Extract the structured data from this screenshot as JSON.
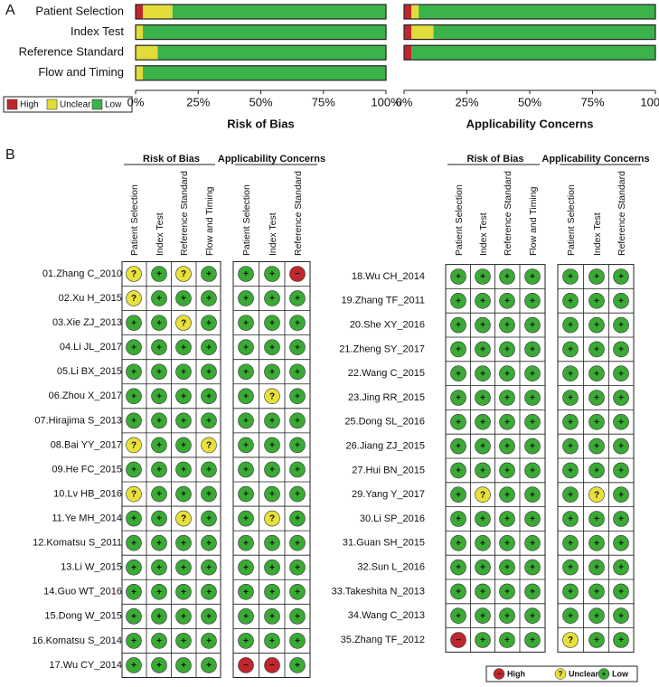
{
  "panel_labels": [
    "A",
    "B"
  ],
  "chart_data": [
    {
      "type": "bar",
      "orientation": "horizontal",
      "stacked": true,
      "x_label": "Risk of Bias",
      "categories": [
        "Patient Selection",
        "Index Test",
        "Reference Standard",
        "Flow and Timing"
      ],
      "series": [
        {
          "name": "High",
          "color": "#c0272d",
          "values": [
            2.9,
            0,
            0,
            0
          ]
        },
        {
          "name": "Unclear",
          "color": "#e2dc3a",
          "values": [
            11.8,
            2.9,
            8.8,
            2.9
          ]
        },
        {
          "name": "Low",
          "color": "#3bb34a",
          "values": [
            85.3,
            97.1,
            91.2,
            97.1
          ]
        }
      ],
      "xlim": [
        0,
        100
      ],
      "xticks": [
        {
          "value": 0,
          "label": "0%"
        },
        {
          "value": 25,
          "label": "25%"
        },
        {
          "value": 50,
          "label": "50%"
        },
        {
          "value": 75,
          "label": "75%"
        },
        {
          "value": 100,
          "label": "100%"
        }
      ],
      "legend": "bottom-left"
    },
    {
      "type": "bar",
      "orientation": "horizontal",
      "stacked": true,
      "x_label": "Applicability Concerns",
      "categories": [
        null,
        null,
        null
      ],
      "series": [
        {
          "color": "#c0272d",
          "values": [
            2.9,
            2.9,
            2.9
          ]
        },
        {
          "color": "#e2dc3a",
          "values": [
            2.9,
            8.8,
            0
          ]
        },
        {
          "color": "#3bb34a",
          "values": [
            94.1,
            88.2,
            97.1
          ]
        }
      ],
      "xlim": [
        0,
        100
      ],
      "xticks": [
        {
          "value": 0,
          "label": "0%"
        },
        {
          "value": 25,
          "label": "25%"
        },
        {
          "value": 50,
          "label": "50%"
        },
        {
          "value": 75,
          "label": "75%"
        },
        {
          "value": 100,
          "label": "100%"
        }
      ]
    }
  ],
  "judgment_legend": [
    {
      "symbol": "−",
      "label": "High",
      "color": "#c0272d"
    },
    {
      "symbol": "?",
      "label": "Unclear",
      "color": "#e8e03c"
    },
    {
      "symbol": "+",
      "label": "Low",
      "color": "#3aaa35"
    }
  ],
  "tables": [
    {
      "risk_of_bias_title": "Risk of Bias",
      "risk_of_bias_columns": [
        "Patient Selection",
        "Index Test",
        "Reference Standard",
        "Flow and Timing"
      ],
      "applicability_title": "Applicability Concerns",
      "applicability_columns": [
        "Patient Selection",
        "Index Test",
        "Reference Standard"
      ],
      "rows": [
        {
          "study": "01.Zhang C_2010",
          "risk_of_bias": [
            "?",
            "+",
            "?",
            "+"
          ],
          "applicability": [
            "+",
            "+",
            "−"
          ]
        },
        {
          "study": "02.Xu H_2015",
          "risk_of_bias": [
            "?",
            "+",
            "+",
            "+"
          ],
          "applicability": [
            "+",
            "+",
            "+"
          ]
        },
        {
          "study": "03.Xie ZJ_2013",
          "risk_of_bias": [
            "+",
            "+",
            "?",
            "+"
          ],
          "applicability": [
            "+",
            "+",
            "+"
          ]
        },
        {
          "study": "04.Li JL_2017",
          "risk_of_bias": [
            "+",
            "+",
            "+",
            "+"
          ],
          "applicability": [
            "+",
            "+",
            "+"
          ]
        },
        {
          "study": "05.Li BX_2015",
          "risk_of_bias": [
            "+",
            "+",
            "+",
            "+"
          ],
          "applicability": [
            "+",
            "+",
            "+"
          ]
        },
        {
          "study": "06.Zhou X_2017",
          "risk_of_bias": [
            "+",
            "+",
            "+",
            "+"
          ],
          "applicability": [
            "+",
            "?",
            "+"
          ]
        },
        {
          "study": "07.Hirajima S_2013",
          "risk_of_bias": [
            "+",
            "+",
            "+",
            "+"
          ],
          "applicability": [
            "+",
            "+",
            "+"
          ]
        },
        {
          "study": "08.Bai YY_2017",
          "risk_of_bias": [
            "?",
            "+",
            "+",
            "?"
          ],
          "applicability": [
            "+",
            "+",
            "+"
          ]
        },
        {
          "study": "09.He FC_2015",
          "risk_of_bias": [
            "+",
            "+",
            "+",
            "+"
          ],
          "applicability": [
            "+",
            "+",
            "+"
          ]
        },
        {
          "study": "10.Lv HB_2016",
          "risk_of_bias": [
            "?",
            "+",
            "+",
            "+"
          ],
          "applicability": [
            "+",
            "+",
            "+"
          ]
        },
        {
          "study": "11.Ye MH_2014",
          "risk_of_bias": [
            "+",
            "+",
            "?",
            "+"
          ],
          "applicability": [
            "+",
            "?",
            "+"
          ]
        },
        {
          "study": "12.Komatsu S_2011",
          "risk_of_bias": [
            "+",
            "+",
            "+",
            "+"
          ],
          "applicability": [
            "+",
            "+",
            "+"
          ]
        },
        {
          "study": "13.Li W_2015",
          "risk_of_bias": [
            "+",
            "+",
            "+",
            "+"
          ],
          "applicability": [
            "+",
            "+",
            "+"
          ]
        },
        {
          "study": "14.Guo WT_2016",
          "risk_of_bias": [
            "+",
            "+",
            "+",
            "+"
          ],
          "applicability": [
            "+",
            "+",
            "+"
          ]
        },
        {
          "study": "15.Dong W_2015",
          "risk_of_bias": [
            "+",
            "+",
            "+",
            "+"
          ],
          "applicability": [
            "+",
            "+",
            "+"
          ]
        },
        {
          "study": "16.Komatsu S_2014",
          "risk_of_bias": [
            "+",
            "+",
            "+",
            "+"
          ],
          "applicability": [
            "+",
            "+",
            "+"
          ]
        },
        {
          "study": "17.Wu CY_2014",
          "risk_of_bias": [
            "+",
            "+",
            "+",
            "+"
          ],
          "applicability": [
            "−",
            "−",
            "+"
          ]
        }
      ]
    },
    {
      "risk_of_bias_title": "Risk of Bias",
      "risk_of_bias_columns": [
        "Patient Selection",
        "Index Test",
        "Reference Standard",
        "Flow and Timing"
      ],
      "applicability_title": "Applicability Concerns",
      "applicability_columns": [
        "Patient Selection",
        "Index Test",
        "Reference Standard"
      ],
      "rows": [
        {
          "study": "18.Wu CH_2014",
          "risk_of_bias": [
            "+",
            "+",
            "+",
            "+"
          ],
          "applicability": [
            "+",
            "+",
            "+"
          ]
        },
        {
          "study": "19.Zhang TF_2011",
          "risk_of_bias": [
            "+",
            "+",
            "+",
            "+"
          ],
          "applicability": [
            "+",
            "+",
            "+"
          ]
        },
        {
          "study": "20.She XY_2016",
          "risk_of_bias": [
            "+",
            "+",
            "+",
            "+"
          ],
          "applicability": [
            "+",
            "+",
            "+"
          ]
        },
        {
          "study": "21.Zheng SY_2017",
          "risk_of_bias": [
            "+",
            "+",
            "+",
            "+"
          ],
          "applicability": [
            "+",
            "+",
            "+"
          ]
        },
        {
          "study": "22.Wang C_2015",
          "risk_of_bias": [
            "+",
            "+",
            "+",
            "+"
          ],
          "applicability": [
            "+",
            "+",
            "+"
          ]
        },
        {
          "study": "23.Jing RR_2015",
          "risk_of_bias": [
            "+",
            "+",
            "+",
            "+"
          ],
          "applicability": [
            "+",
            "+",
            "+"
          ]
        },
        {
          "study": "25.Dong SL_2016",
          "risk_of_bias": [
            "+",
            "+",
            "+",
            "+"
          ],
          "applicability": [
            "+",
            "+",
            "+"
          ]
        },
        {
          "study": "26.Jiang ZJ_2015",
          "risk_of_bias": [
            "+",
            "+",
            "+",
            "+"
          ],
          "applicability": [
            "+",
            "+",
            "+"
          ]
        },
        {
          "study": "27.Hui BN_2015",
          "risk_of_bias": [
            "+",
            "+",
            "+",
            "+"
          ],
          "applicability": [
            "+",
            "+",
            "+"
          ]
        },
        {
          "study": "29.Yang Y_2017",
          "risk_of_bias": [
            "+",
            "?",
            "+",
            "+"
          ],
          "applicability": [
            "+",
            "?",
            "+"
          ]
        },
        {
          "study": "30.Li SP_2016",
          "risk_of_bias": [
            "+",
            "+",
            "+",
            "+"
          ],
          "applicability": [
            "+",
            "+",
            "+"
          ]
        },
        {
          "study": "31.Guan SH_2015",
          "risk_of_bias": [
            "+",
            "+",
            "+",
            "+"
          ],
          "applicability": [
            "+",
            "+",
            "+"
          ]
        },
        {
          "study": "32.Sun L_2016",
          "risk_of_bias": [
            "+",
            "+",
            "+",
            "+"
          ],
          "applicability": [
            "+",
            "+",
            "+"
          ]
        },
        {
          "study": "33.Takeshita N_2013",
          "risk_of_bias": [
            "+",
            "+",
            "+",
            "+"
          ],
          "applicability": [
            "+",
            "+",
            "+"
          ]
        },
        {
          "study": "34.Wang C_2013",
          "risk_of_bias": [
            "+",
            "+",
            "+",
            "+"
          ],
          "applicability": [
            "+",
            "+",
            "+"
          ]
        },
        {
          "study": "35.Zhang TF_2012",
          "risk_of_bias": [
            "−",
            "+",
            "+",
            "+"
          ],
          "applicability": [
            "?",
            "+",
            "+"
          ]
        }
      ]
    }
  ]
}
